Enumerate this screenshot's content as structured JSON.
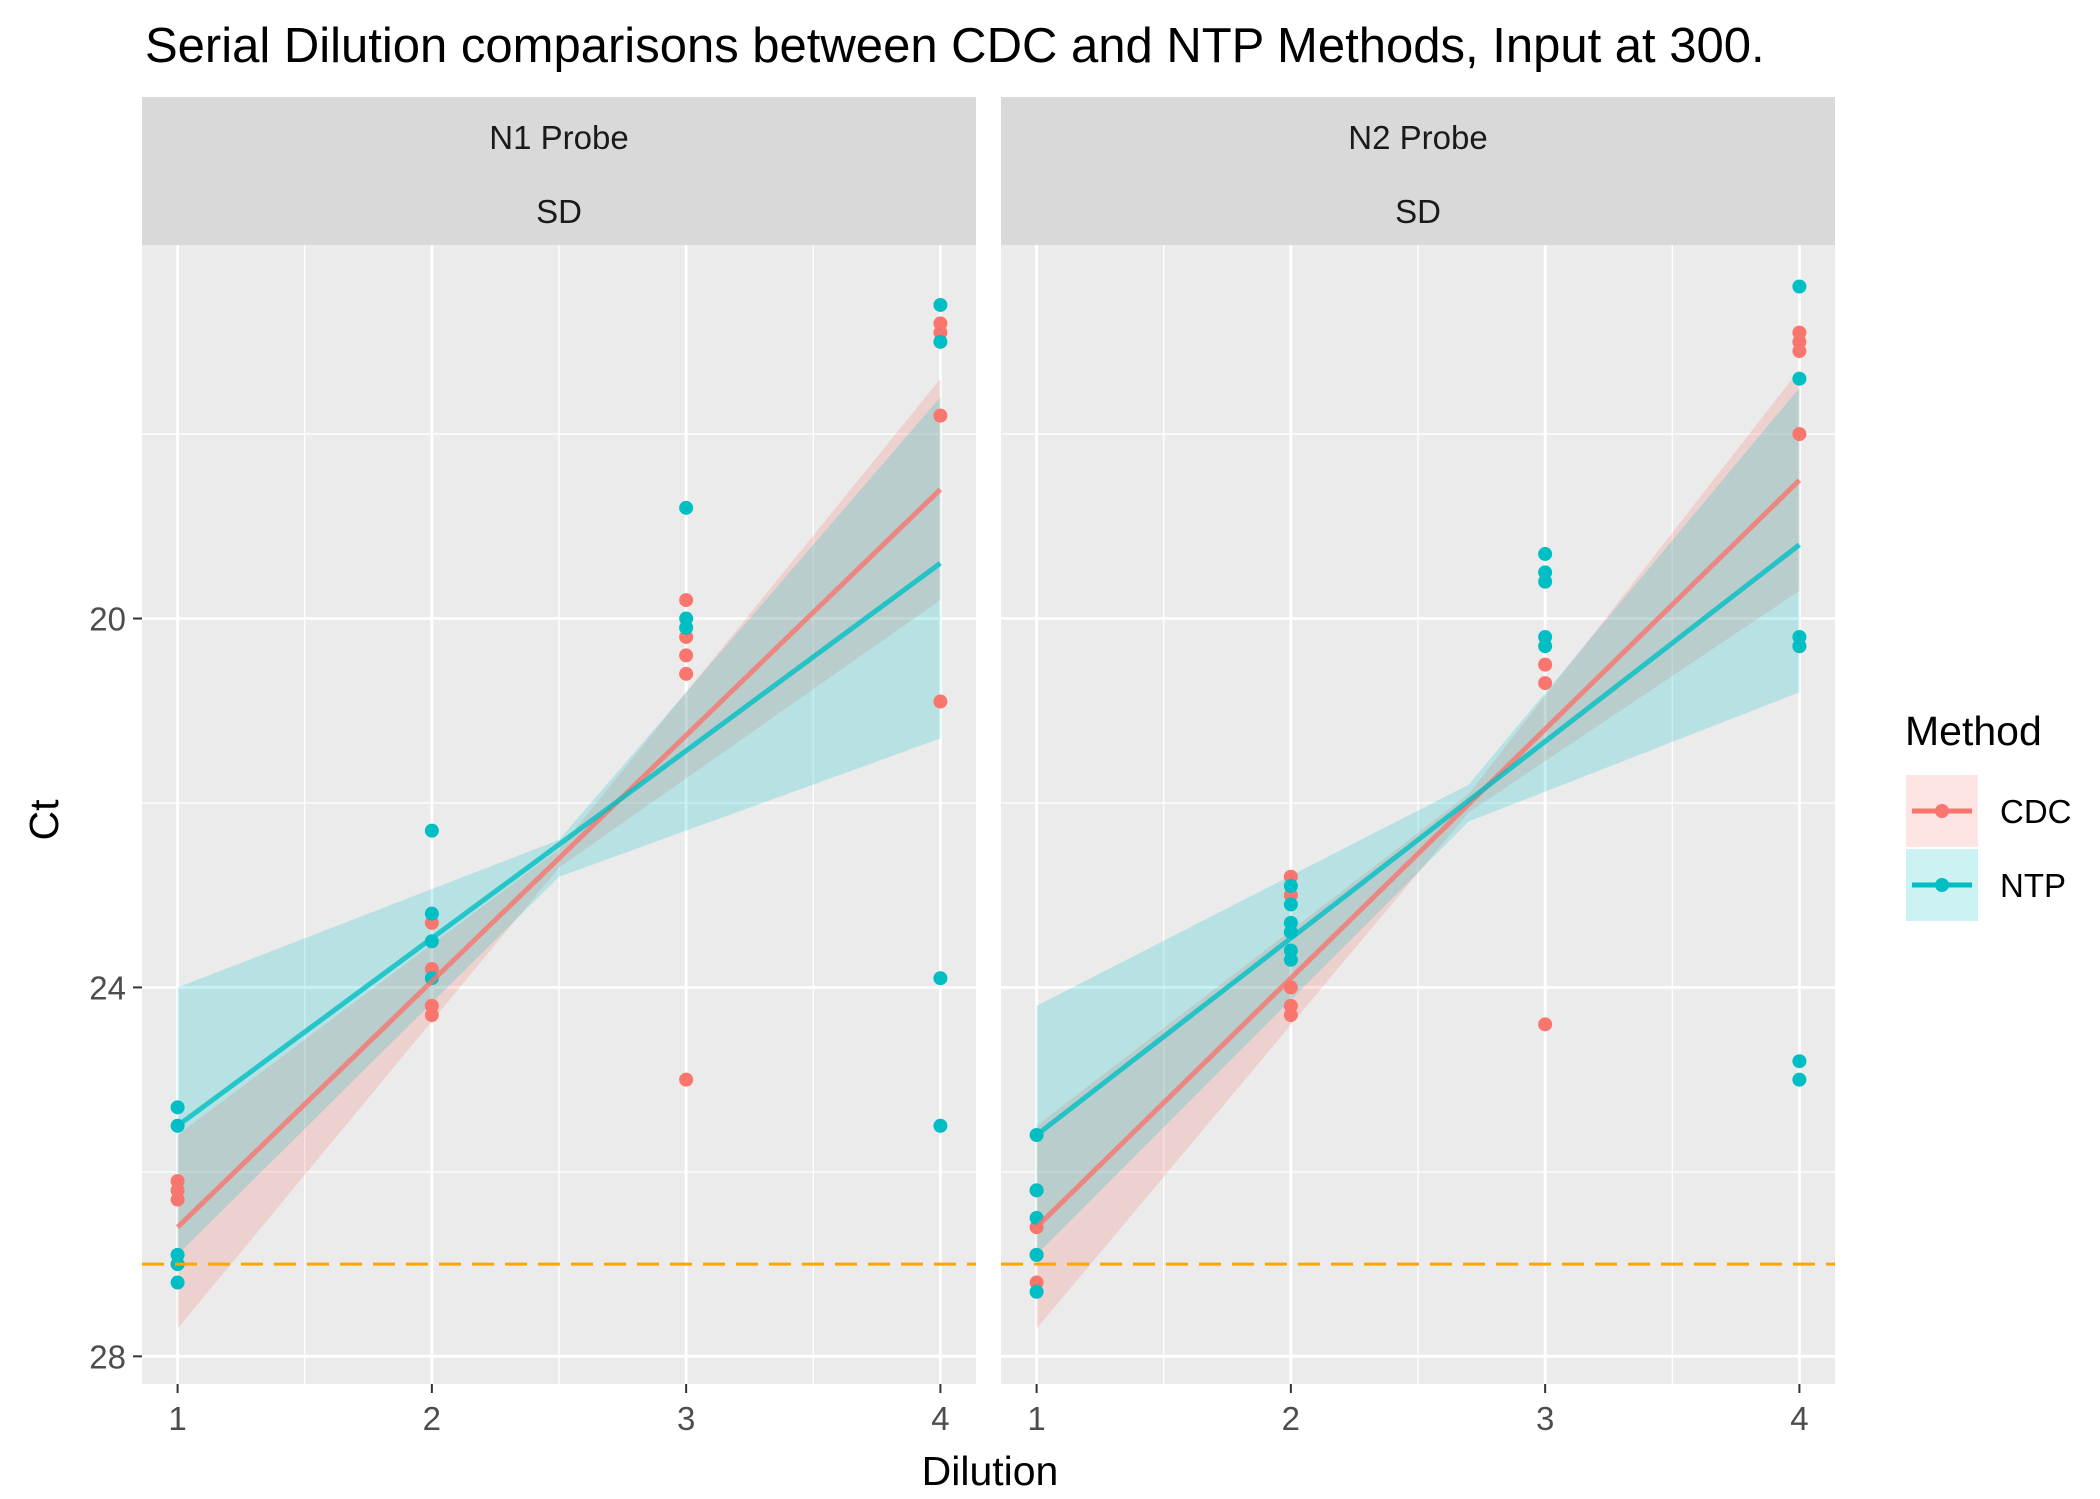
{
  "chart_data": {
    "type": "scatter",
    "title": "Serial Dilution comparisons between CDC and NTP Methods, Input at 300.",
    "xlabel": "Dilution",
    "ylabel": "Ct",
    "x_ticks": [
      "1",
      "2",
      "3",
      "4"
    ],
    "y_ticks": [
      "20",
      "24",
      "28"
    ],
    "xlim": [
      0.86,
      4.14
    ],
    "ylim": [
      28.3,
      15.95
    ],
    "y_reversed": true,
    "grid": true,
    "legend_position": "right",
    "reference_line": {
      "y": 27.0,
      "color": "#FFA500",
      "style": "dashed"
    },
    "legend": {
      "title": "Method",
      "items": [
        "CDC",
        "NTP"
      ]
    },
    "colors": {
      "CDC": "#F8766D",
      "NTP": "#00BFC4",
      "panel_bg": "#EBEBEB",
      "strip_bg": "#D9D9D9",
      "grid": "#FFFFFF"
    },
    "panels": [
      {
        "strip": [
          "N1 Probe",
          "SD"
        ],
        "series": [
          {
            "name": "CDC",
            "points": [
              [
                1,
                26.1
              ],
              [
                1,
                26.2
              ],
              [
                1,
                26.3
              ],
              [
                1,
                27.0
              ],
              [
                2,
                23.3
              ],
              [
                2,
                23.8
              ],
              [
                2,
                24.2
              ],
              [
                2,
                24.3
              ],
              [
                3,
                19.8
              ],
              [
                3,
                20.2
              ],
              [
                3,
                20.4
              ],
              [
                3,
                20.6
              ],
              [
                3,
                25.0
              ],
              [
                4,
                16.8
              ],
              [
                4,
                16.9
              ],
              [
                4,
                17.8
              ],
              [
                4,
                20.9
              ]
            ],
            "fit": [
              [
                1,
                26.6
              ],
              [
                4,
                18.6
              ]
            ],
            "band_low": [
              [
                1,
                25.6
              ],
              [
                2.5,
                22.5
              ],
              [
                4,
                17.4
              ]
            ],
            "band_high": [
              [
                1,
                27.7
              ],
              [
                2.5,
                22.7
              ],
              [
                4,
                19.8
              ]
            ]
          },
          {
            "name": "NTP",
            "points": [
              [
                1,
                25.3
              ],
              [
                1,
                25.5
              ],
              [
                1,
                26.9
              ],
              [
                1,
                27.0
              ],
              [
                1,
                27.2
              ],
              [
                2,
                22.3
              ],
              [
                2,
                23.2
              ],
              [
                2,
                23.5
              ],
              [
                2,
                23.9
              ],
              [
                3,
                18.8
              ],
              [
                3,
                20.0
              ],
              [
                3,
                20.1
              ],
              [
                4,
                16.6
              ],
              [
                4,
                17.0
              ],
              [
                4,
                23.9
              ],
              [
                4,
                25.5
              ]
            ],
            "fit": [
              [
                1,
                25.5
              ],
              [
                4,
                19.4
              ]
            ],
            "band_low": [
              [
                1,
                24.0
              ],
              [
                2.5,
                22.4
              ],
              [
                4,
                17.6
              ]
            ],
            "band_high": [
              [
                1,
                26.9
              ],
              [
                2.5,
                22.8
              ],
              [
                4,
                21.3
              ]
            ]
          }
        ]
      },
      {
        "strip": [
          "N2 Probe",
          "SD"
        ],
        "series": [
          {
            "name": "CDC",
            "points": [
              [
                1,
                26.2
              ],
              [
                1,
                26.6
              ],
              [
                1,
                26.9
              ],
              [
                1,
                27.2
              ],
              [
                2,
                22.8
              ],
              [
                2,
                23.0
              ],
              [
                2,
                24.0
              ],
              [
                2,
                24.2
              ],
              [
                2,
                24.3
              ],
              [
                3,
                20.5
              ],
              [
                3,
                20.7
              ],
              [
                3,
                24.4
              ],
              [
                4,
                16.9
              ],
              [
                4,
                17.0
              ],
              [
                4,
                17.1
              ],
              [
                4,
                18.0
              ],
              [
                4,
                20.3
              ]
            ],
            "fit": [
              [
                1,
                26.6
              ],
              [
                4,
                18.5
              ]
            ],
            "band_low": [
              [
                1,
                25.5
              ],
              [
                2.7,
                21.9
              ],
              [
                4,
                17.3
              ]
            ],
            "band_high": [
              [
                1,
                27.7
              ],
              [
                2.7,
                22.1
              ],
              [
                4,
                19.7
              ]
            ]
          },
          {
            "name": "NTP",
            "points": [
              [
                1,
                25.6
              ],
              [
                1,
                26.2
              ],
              [
                1,
                26.5
              ],
              [
                1,
                26.9
              ],
              [
                1,
                27.3
              ],
              [
                2,
                22.9
              ],
              [
                2,
                23.1
              ],
              [
                2,
                23.3
              ],
              [
                2,
                23.4
              ],
              [
                2,
                23.6
              ],
              [
                2,
                23.7
              ],
              [
                3,
                19.3
              ],
              [
                3,
                19.5
              ],
              [
                3,
                19.6
              ],
              [
                3,
                20.2
              ],
              [
                3,
                20.3
              ],
              [
                4,
                16.4
              ],
              [
                4,
                17.4
              ],
              [
                4,
                20.2
              ],
              [
                4,
                20.3
              ],
              [
                4,
                24.8
              ],
              [
                4,
                25.0
              ]
            ],
            "fit": [
              [
                1,
                25.6
              ],
              [
                4,
                19.2
              ]
            ],
            "band_low": [
              [
                1,
                24.2
              ],
              [
                2.7,
                21.8
              ],
              [
                4,
                17.5
              ]
            ],
            "band_high": [
              [
                1,
                26.9
              ],
              [
                2.7,
                22.2
              ],
              [
                4,
                20.8
              ]
            ]
          }
        ]
      }
    ]
  }
}
